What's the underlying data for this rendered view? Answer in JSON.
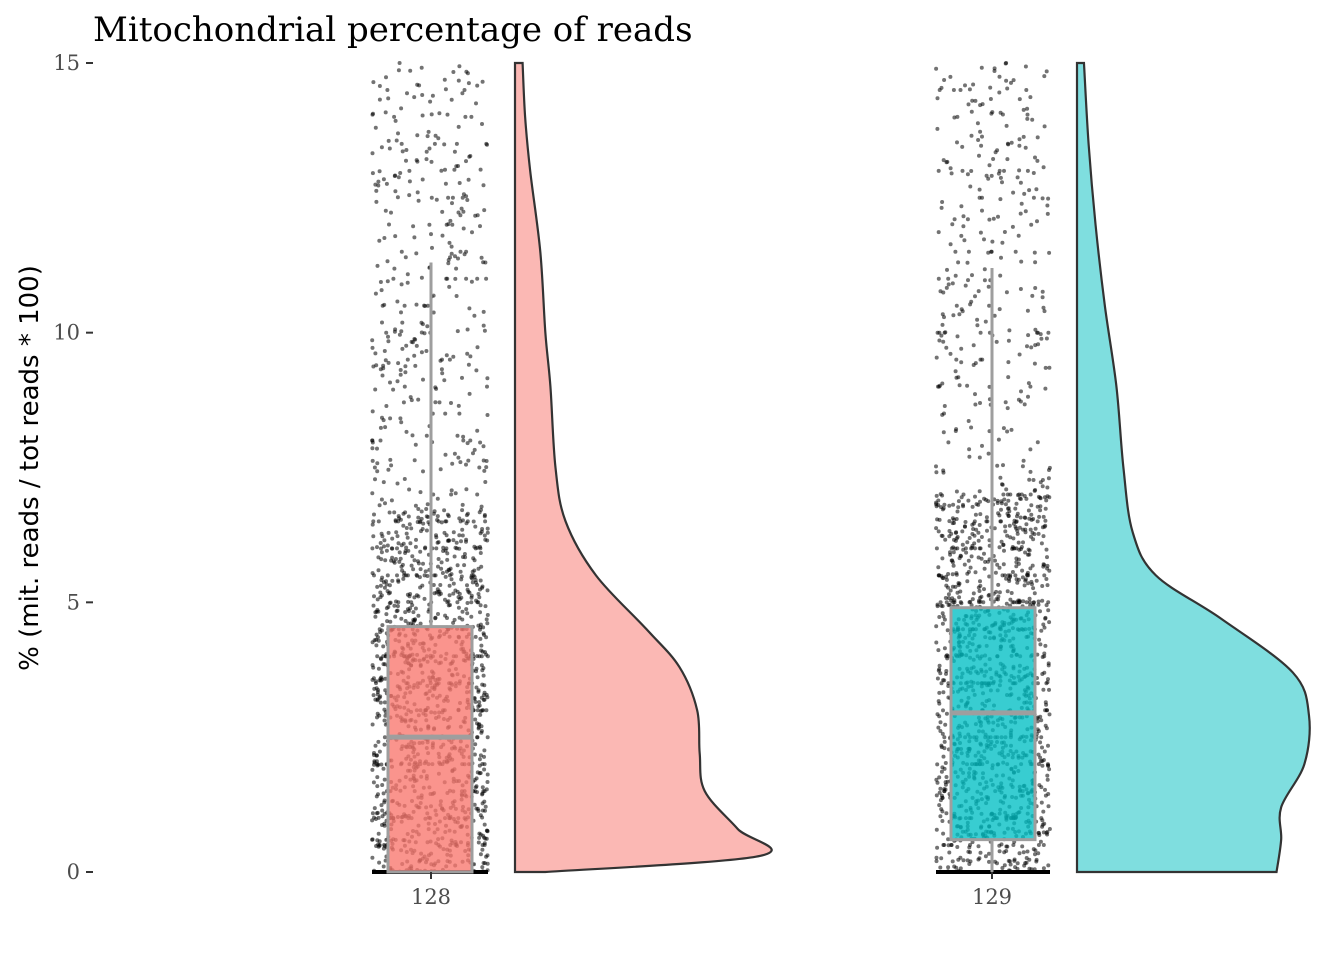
{
  "chart_data": {
    "type": "raincloud",
    "title": "Mitochondrial percentage of reads",
    "xlabel": "",
    "ylabel": "% (mit. reads / tot reads * 100)",
    "ylim": [
      0,
      15
    ],
    "yticks": [
      0,
      5,
      10,
      15
    ],
    "ytick_labels": [
      "0",
      "5",
      "10",
      "15"
    ],
    "grid": false,
    "legend": "none",
    "categories": [
      "128",
      "129"
    ],
    "series": [
      {
        "category": "128",
        "color": "#F8766D",
        "box": {
          "lower_whisker": 0,
          "q1": 0,
          "median": 2.5,
          "q3": 4.55,
          "upper_whisker": 11.3
        },
        "density": [
          [
            0,
            0.12
          ],
          [
            0.3,
            0.97
          ],
          [
            0.8,
            0.88
          ],
          [
            1.5,
            0.75
          ],
          [
            2.2,
            0.73
          ],
          [
            3.0,
            0.72
          ],
          [
            3.8,
            0.65
          ],
          [
            4.5,
            0.52
          ],
          [
            5.5,
            0.32
          ],
          [
            6.5,
            0.2
          ],
          [
            7.5,
            0.16
          ],
          [
            9,
            0.14
          ],
          [
            10,
            0.12
          ],
          [
            11.5,
            0.1
          ],
          [
            13,
            0.06
          ],
          [
            14,
            0.04
          ],
          [
            15,
            0.03
          ]
        ]
      },
      {
        "category": "129",
        "color": "#00BFC4",
        "box": {
          "lower_whisker": 0,
          "q1": 0.6,
          "median": 2.95,
          "q3": 4.9,
          "upper_whisker": 11.2
        },
        "density": [
          [
            0,
            0.86
          ],
          [
            0.6,
            0.88
          ],
          [
            1.2,
            0.88
          ],
          [
            2.0,
            0.98
          ],
          [
            2.9,
            1.0
          ],
          [
            3.7,
            0.93
          ],
          [
            4.7,
            0.62
          ],
          [
            5.5,
            0.34
          ],
          [
            6.3,
            0.24
          ],
          [
            7.5,
            0.2
          ],
          [
            9,
            0.17
          ],
          [
            10.5,
            0.12
          ],
          [
            12,
            0.08
          ],
          [
            13.5,
            0.05
          ],
          [
            15,
            0.03
          ]
        ]
      }
    ]
  }
}
